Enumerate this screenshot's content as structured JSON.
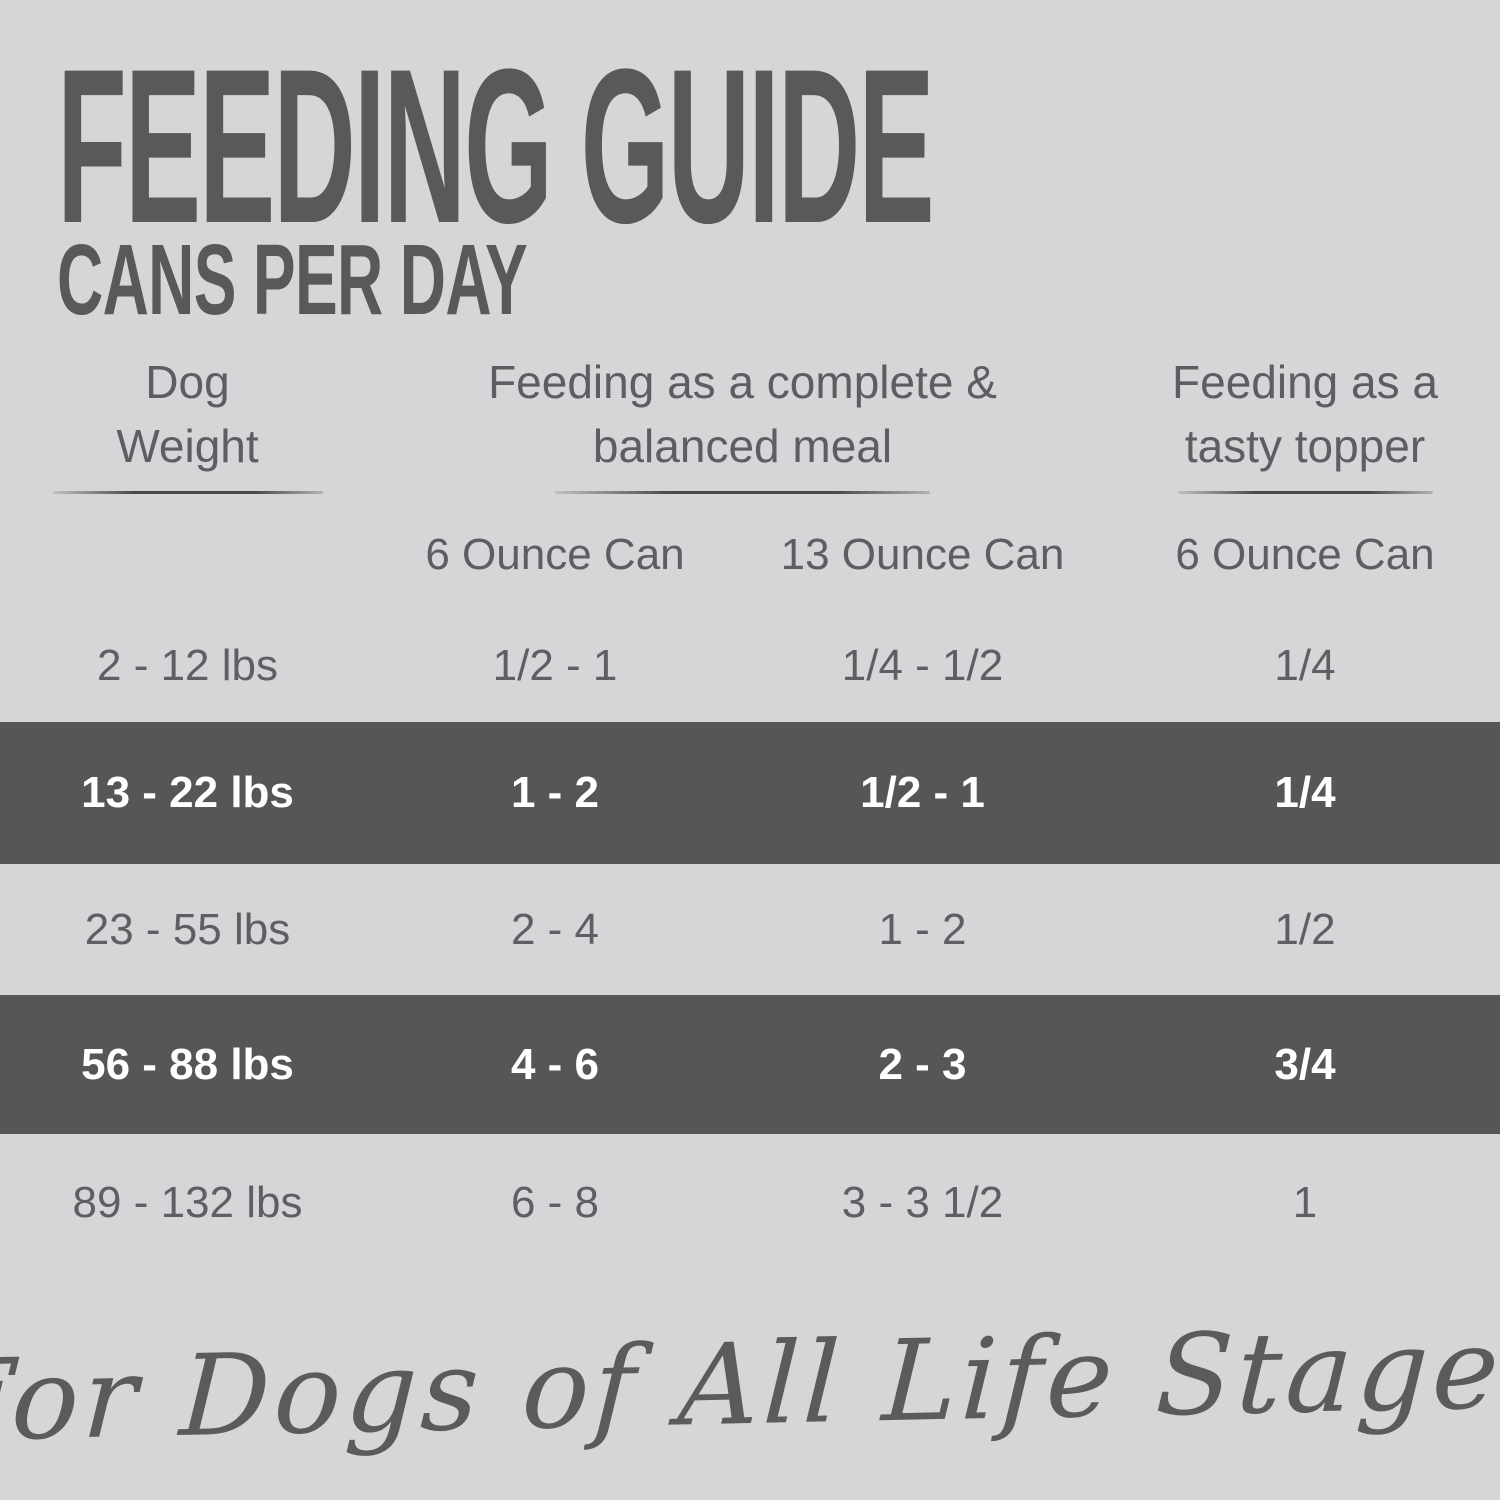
{
  "header": {
    "title": "FEEDING GUIDE",
    "subtitle": "CANS PER DAY"
  },
  "table": {
    "groups": {
      "weight": "Dog Weight",
      "complete": "Feeding as a complete & balanced meal",
      "topper": "Feeding as a tasty topper"
    },
    "sub_headers": {
      "complete_6oz": "6 Ounce Can",
      "complete_13oz": "13 Ounce Can",
      "topper_6oz": "6 Ounce Can"
    },
    "rows": [
      {
        "weight": "2 - 12 lbs",
        "complete_6oz": "1/2 - 1",
        "complete_13oz": "1/4 - 1/2",
        "topper_6oz": "1/4",
        "highlighted": false
      },
      {
        "weight": "13 - 22 lbs",
        "complete_6oz": "1 - 2",
        "complete_13oz": "1/2 - 1",
        "topper_6oz": "1/4",
        "highlighted": true
      },
      {
        "weight": "23 - 55 lbs",
        "complete_6oz": "2 - 4",
        "complete_13oz": "1 - 2",
        "topper_6oz": "1/2",
        "highlighted": false
      },
      {
        "weight": "56 - 88 lbs",
        "complete_6oz": "4 - 6",
        "complete_13oz": "2 - 3",
        "topper_6oz": "3/4",
        "highlighted": true
      },
      {
        "weight": "89 - 132 lbs",
        "complete_6oz": "6 - 8",
        "complete_13oz": "3 - 3 1/2",
        "topper_6oz": "1",
        "highlighted": false
      }
    ]
  },
  "footer": {
    "tagline": "For Dogs of All Life Stages"
  },
  "colors": {
    "background": "#d5d6d8",
    "highlight_band": "#565659",
    "heading_text": "#58595b",
    "body_text": "#5d5e61",
    "band_text": "#ffffff",
    "underline": "#4a4a4c"
  },
  "chart_data": {
    "type": "table",
    "title": "FEEDING GUIDE — CANS PER DAY",
    "columns": [
      "Dog Weight",
      "Feeding as a complete & balanced meal — 6 Ounce Can",
      "Feeding as a complete & balanced meal — 13 Ounce Can",
      "Feeding as a tasty topper — 6 Ounce Can"
    ],
    "rows": [
      [
        "2 - 12 lbs",
        "1/2 - 1",
        "1/4 - 1/2",
        "1/4"
      ],
      [
        "13 - 22 lbs",
        "1 - 2",
        "1/2 - 1",
        "1/4"
      ],
      [
        "23 - 55 lbs",
        "2 - 4",
        "1 - 2",
        "1/2"
      ],
      [
        "56 - 88 lbs",
        "4 - 6",
        "2 - 3",
        "3/4"
      ],
      [
        "89 - 132 lbs",
        "6 - 8",
        "3 - 3 1/2",
        "1"
      ]
    ],
    "highlighted_row_indices": [
      1,
      3
    ],
    "annotations": [
      "For Dogs of All Life Stages"
    ]
  }
}
